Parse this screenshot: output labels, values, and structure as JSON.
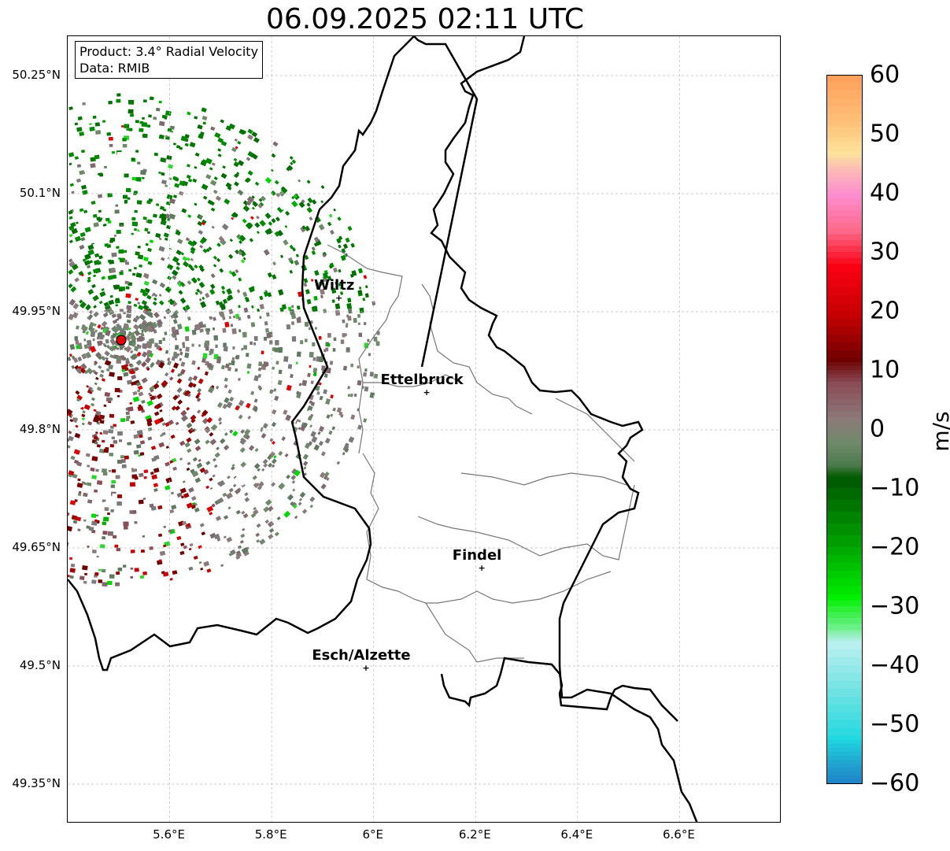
{
  "title": "06.09.2025 02:11 UTC",
  "info": {
    "product": "Product: 3.4° Radial Velocity",
    "data": "Data: RMIB"
  },
  "axes": {
    "lat_ticks": [
      "50.25°N",
      "50.1°N",
      "49.95°N",
      "49.8°N",
      "49.65°N",
      "49.5°N",
      "49.35°N"
    ],
    "lon_ticks": [
      "5.6°E",
      "5.8°E",
      "6°E",
      "6.2°E",
      "6.4°E",
      "6.6°E"
    ],
    "lat_values": [
      50.25,
      50.1,
      49.95,
      49.8,
      49.65,
      49.5,
      49.35
    ],
    "lon_values": [
      5.6,
      5.8,
      6.0,
      6.2,
      6.4,
      6.6
    ],
    "lat_range": [
      49.3,
      50.3
    ],
    "lon_range": [
      5.4,
      6.8
    ],
    "grid": true
  },
  "cities": [
    {
      "name": "Wiltz",
      "lat": 49.968,
      "lon": 5.932
    },
    {
      "name": "Ettelbruck",
      "lat": 49.848,
      "lon": 6.104
    },
    {
      "name": "Findel",
      "lat": 49.625,
      "lon": 6.212
    },
    {
      "name": "Esch/Alzette",
      "lat": 49.498,
      "lon": 5.985
    }
  ],
  "radar_site": {
    "lat": 49.914,
    "lon": 5.505,
    "color": "#e00000"
  },
  "colorbar": {
    "label": "m/s",
    "min": -60,
    "max": 60,
    "ticks": [
      "60",
      "50",
      "40",
      "30",
      "20",
      "10",
      "0",
      "−10",
      "−20",
      "−30",
      "−40",
      "−50",
      "−60"
    ],
    "tick_values": [
      60,
      50,
      40,
      30,
      20,
      10,
      0,
      -10,
      -20,
      -30,
      -40,
      -50,
      -60
    ],
    "stops": [
      {
        "v": 60,
        "c": "#fea15c"
      },
      {
        "v": 52,
        "c": "#fec27a"
      },
      {
        "v": 47,
        "c": "#fde49c"
      },
      {
        "v": 44,
        "c": "#fdb8b8"
      },
      {
        "v": 40,
        "c": "#fd8ccf"
      },
      {
        "v": 34,
        "c": "#fd6888"
      },
      {
        "v": 28,
        "c": "#f90012"
      },
      {
        "v": 20,
        "c": "#c60000"
      },
      {
        "v": 12,
        "c": "#6e0000"
      },
      {
        "v": 8,
        "c": "#8a4e58"
      },
      {
        "v": 2,
        "c": "#8c7a7a"
      },
      {
        "v": -2,
        "c": "#6f8a6a"
      },
      {
        "v": -6,
        "c": "#4a7a4a"
      },
      {
        "v": -8,
        "c": "#005c00"
      },
      {
        "v": -20,
        "c": "#00aa00"
      },
      {
        "v": -28,
        "c": "#00f000"
      },
      {
        "v": -34,
        "c": "#80f0a0"
      },
      {
        "v": -36,
        "c": "#b8f0f0"
      },
      {
        "v": -44,
        "c": "#6ee2e2"
      },
      {
        "v": -52,
        "c": "#20d8e0"
      },
      {
        "v": -56,
        "c": "#20a8d0"
      },
      {
        "v": -60,
        "c": "#1f7fc8"
      }
    ]
  }
}
